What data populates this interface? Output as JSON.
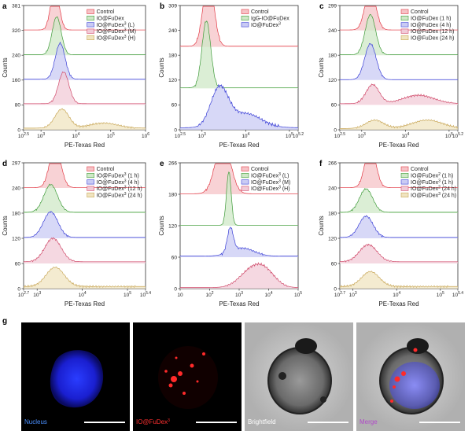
{
  "colors": {
    "red": "#e23b46",
    "red_fill": "#f6c3c7",
    "green": "#3f9b3a",
    "green_fill": "#cfe8c7",
    "blue": "#3a3fd6",
    "blue_fill": "#c9cbf4",
    "pink": "#d04a6a",
    "pink_fill": "#f1cbd7",
    "tan": "#c9a85a",
    "tan_fill": "#f0e4c0"
  },
  "chart_data": [
    {
      "panel": "a",
      "type": "area",
      "xlabel": "PE-Texas Red",
      "ylabel": "Counts",
      "xscale": "log",
      "xlim": [
        2.5,
        6
      ],
      "xticks": [
        {
          "v": 2.5,
          "base": "10",
          "exp": "2.5"
        },
        {
          "v": 3,
          "base": "10",
          "exp": "3"
        },
        {
          "v": 4,
          "base": "10",
          "exp": "4"
        },
        {
          "v": 5,
          "base": "10",
          "exp": "5"
        },
        {
          "v": 6,
          "base": "10",
          "exp": "6"
        }
      ],
      "yticks": [
        "0",
        "80",
        "160",
        "240",
        "320",
        "381"
      ],
      "legend": [
        {
          "text": "Control",
          "sup": "",
          "tail": ""
        },
        {
          "text": "IO@FuDex",
          "sup": "",
          "tail": ""
        },
        {
          "text": "IO@FuDex",
          "sup": "3",
          "tail": " (L)"
        },
        {
          "text": "IO@FuDex",
          "sup": "3",
          "tail": " (M)"
        },
        {
          "text": "IO@FuDex",
          "sup": "3",
          "tail": " (H)"
        }
      ],
      "series": [
        {
          "color": "red",
          "peaks": [
            [
              3.4,
              1.0,
              0.12
            ]
          ],
          "tail": 0.01
        },
        {
          "color": "green",
          "peaks": [
            [
              3.45,
              0.9,
              0.13
            ]
          ],
          "tail": 0.01
        },
        {
          "color": "blue",
          "peaks": [
            [
              3.55,
              0.85,
              0.14
            ]
          ],
          "tail": 0.02
        },
        {
          "color": "pink",
          "peaks": [
            [
              3.65,
              0.75,
              0.15
            ]
          ],
          "tail": 0.03
        },
        {
          "color": "tan",
          "peaks": [
            [
              3.6,
              0.45,
              0.2
            ],
            [
              4.8,
              0.12,
              0.4
            ]
          ],
          "tail": 0.04
        }
      ]
    },
    {
      "panel": "b",
      "type": "area",
      "xlabel": "PE-Texas Red",
      "ylabel": "Counts",
      "xscale": "log",
      "xlim": [
        2.5,
        5.2
      ],
      "xticks": [
        {
          "v": 2.5,
          "base": "10",
          "exp": "2.5"
        },
        {
          "v": 3,
          "base": "10",
          "exp": "3"
        },
        {
          "v": 4,
          "base": "10",
          "exp": "4"
        },
        {
          "v": 5,
          "base": "10",
          "exp": "5"
        },
        {
          "v": 5.2,
          "base": "10",
          "exp": "5.2"
        }
      ],
      "yticks": [
        "0",
        "60",
        "120",
        "180",
        "240",
        "309"
      ],
      "legend": [
        {
          "text": "Control",
          "sup": "",
          "tail": ""
        },
        {
          "text": "IgG-IO@FuDex",
          "sup": "",
          "tail": ""
        },
        {
          "text": "IO@FuDex",
          "sup": "3",
          "tail": ""
        }
      ],
      "series": [
        {
          "color": "red",
          "peaks": [
            [
              3.15,
              1.0,
              0.12
            ]
          ],
          "tail": 0.01
        },
        {
          "color": "green",
          "peaks": [
            [
              3.1,
              0.95,
              0.1
            ]
          ],
          "tail": 0.01
        },
        {
          "color": "blue",
          "peaks": [
            [
              3.4,
              0.55,
              0.2
            ],
            [
              4.0,
              0.2,
              0.35
            ]
          ],
          "tail": 0.03
        }
      ]
    },
    {
      "panel": "c",
      "type": "area",
      "xlabel": "PE-Texas Red",
      "ylabel": "Counts",
      "xscale": "log",
      "xlim": [
        2.5,
        5.2
      ],
      "xticks": [
        {
          "v": 2.5,
          "base": "10",
          "exp": "2.5"
        },
        {
          "v": 3,
          "base": "10",
          "exp": "3"
        },
        {
          "v": 4,
          "base": "10",
          "exp": "4"
        },
        {
          "v": 5,
          "base": "10",
          "exp": "5"
        },
        {
          "v": 5.2,
          "base": "10",
          "exp": "5.2"
        }
      ],
      "yticks": [
        "0",
        "60",
        "120",
        "180",
        "240",
        "299"
      ],
      "legend": [
        {
          "text": "Control",
          "sup": "",
          "tail": ""
        },
        {
          "text": "IO@FuDex (1 h)",
          "sup": "",
          "tail": ""
        },
        {
          "text": "IO@FuDex (4 h)",
          "sup": "",
          "tail": ""
        },
        {
          "text": "IO@FuDex (12 h)",
          "sup": "",
          "tail": ""
        },
        {
          "text": "IO@FuDex (24 h)",
          "sup": "",
          "tail": ""
        }
      ],
      "series": [
        {
          "color": "red",
          "peaks": [
            [
              3.2,
              1.0,
              0.12
            ]
          ],
          "tail": 0.01
        },
        {
          "color": "green",
          "peaks": [
            [
              3.2,
              0.95,
              0.12
            ]
          ],
          "tail": 0.01
        },
        {
          "color": "blue",
          "peaks": [
            [
              3.2,
              0.85,
              0.13
            ]
          ],
          "tail": 0.01
        },
        {
          "color": "pink",
          "peaks": [
            [
              3.25,
              0.45,
              0.15
            ],
            [
              4.3,
              0.2,
              0.35
            ]
          ],
          "tail": 0.03
        },
        {
          "color": "tan",
          "peaks": [
            [
              3.3,
              0.2,
              0.2
            ],
            [
              4.5,
              0.2,
              0.35
            ]
          ],
          "tail": 0.03
        }
      ]
    },
    {
      "panel": "d",
      "type": "area",
      "xlabel": "PE-Texas Red",
      "ylabel": "Counts",
      "xscale": "log",
      "xlim": [
        2.7,
        5.4
      ],
      "xticks": [
        {
          "v": 2.7,
          "base": "10",
          "exp": "2.7"
        },
        {
          "v": 3,
          "base": "10",
          "exp": "3"
        },
        {
          "v": 4,
          "base": "10",
          "exp": "4"
        },
        {
          "v": 5,
          "base": "10",
          "exp": "5"
        },
        {
          "v": 5.4,
          "base": "10",
          "exp": "5.4"
        }
      ],
      "yticks": [
        "0",
        "60",
        "120",
        "180",
        "240",
        "297"
      ],
      "legend": [
        {
          "text": "Control",
          "sup": "",
          "tail": ""
        },
        {
          "text": "IO@FuDex",
          "sup": "3",
          "tail": " (1 h)"
        },
        {
          "text": "IO@FuDex",
          "sup": "3",
          "tail": " (4 h)"
        },
        {
          "text": "IO@FuDex",
          "sup": "3",
          "tail": " (12 h)"
        },
        {
          "text": "IO@FuDex",
          "sup": "3",
          "tail": " (24 h)"
        }
      ],
      "series": [
        {
          "color": "red",
          "peaks": [
            [
              3.4,
              1.0,
              0.12
            ]
          ],
          "tail": 0.01
        },
        {
          "color": "green",
          "peaks": [
            [
              3.3,
              0.65,
              0.15
            ]
          ],
          "tail": 0.02
        },
        {
          "color": "blue",
          "peaks": [
            [
              3.3,
              0.6,
              0.16
            ]
          ],
          "tail": 0.02
        },
        {
          "color": "pink",
          "peaks": [
            [
              3.35,
              0.55,
              0.18
            ]
          ],
          "tail": 0.04
        },
        {
          "color": "tan",
          "peaks": [
            [
              3.4,
              0.45,
              0.2
            ]
          ],
          "tail": 0.05
        }
      ]
    },
    {
      "panel": "e",
      "type": "area",
      "xlabel": "PE-Texas Red",
      "ylabel": "Counts",
      "xscale": "log",
      "xlim": [
        1,
        5
      ],
      "xticks": [
        {
          "v": 1,
          "base": "10",
          "exp": ""
        },
        {
          "v": 2,
          "base": "10",
          "exp": "2"
        },
        {
          "v": 3,
          "base": "10",
          "exp": "3"
        },
        {
          "v": 4,
          "base": "10",
          "exp": "4"
        },
        {
          "v": 5,
          "base": "10",
          "exp": "5"
        }
      ],
      "yticks": [
        "0",
        "60",
        "120",
        "180",
        "266"
      ],
      "legend": [
        {
          "text": "Control",
          "sup": "",
          "tail": ""
        },
        {
          "text": "IO@FuDex",
          "sup": "3",
          "tail": " (L)"
        },
        {
          "text": "IO@FuDex",
          "sup": "3",
          "tail": " (M)"
        },
        {
          "text": "IO@FuDex",
          "sup": "3",
          "tail": " (H)"
        }
      ],
      "series": [
        {
          "color": "red",
          "peaks": [
            [
              2.45,
              1.0,
              0.25
            ]
          ],
          "tail": 0.01
        },
        {
          "color": "green",
          "peaks": [
            [
              2.65,
              1.0,
              0.08
            ]
          ],
          "tail": 0.01
        },
        {
          "color": "blue",
          "peaks": [
            [
              2.7,
              0.45,
              0.1
            ],
            [
              3.1,
              0.15,
              0.4
            ]
          ],
          "tail": 0.02
        },
        {
          "color": "pink",
          "peaks": [
            [
              3.4,
              0.3,
              0.4
            ],
            [
              3.9,
              0.25,
              0.35
            ]
          ],
          "tail": 0.02
        }
      ]
    },
    {
      "panel": "f",
      "type": "area",
      "xlabel": "PE-Texas Red",
      "ylabel": "Counts",
      "xscale": "log",
      "xlim": [
        2.7,
        5.4
      ],
      "xticks": [
        {
          "v": 2.7,
          "base": "10",
          "exp": "2.7"
        },
        {
          "v": 3,
          "base": "10",
          "exp": "3"
        },
        {
          "v": 4,
          "base": "10",
          "exp": "4"
        },
        {
          "v": 5,
          "base": "10",
          "exp": "5"
        },
        {
          "v": 5.4,
          "base": "10",
          "exp": "5.4"
        }
      ],
      "yticks": [
        "0",
        "60",
        "120",
        "180",
        "240",
        "266"
      ],
      "legend": [
        {
          "text": "Control",
          "sup": "",
          "tail": ""
        },
        {
          "text": "IO@FuDex",
          "sup": "2",
          "tail": " (1 h)"
        },
        {
          "text": "IO@FuDex",
          "sup": "3",
          "tail": " (1 h)"
        },
        {
          "text": "IO@FuDex",
          "sup": "2",
          "tail": " (24 h)"
        },
        {
          "text": "IO@FuDex",
          "sup": "3",
          "tail": " (24 h)"
        }
      ],
      "series": [
        {
          "color": "red",
          "peaks": [
            [
              3.4,
              1.0,
              0.12
            ]
          ],
          "tail": 0.01
        },
        {
          "color": "green",
          "peaks": [
            [
              3.3,
              0.55,
              0.15
            ]
          ],
          "tail": 0.02
        },
        {
          "color": "blue",
          "peaks": [
            [
              3.3,
              0.5,
              0.16
            ]
          ],
          "tail": 0.02
        },
        {
          "color": "pink",
          "peaks": [
            [
              3.35,
              0.4,
              0.2
            ]
          ],
          "tail": 0.04
        },
        {
          "color": "tan",
          "peaks": [
            [
              3.4,
              0.35,
              0.2
            ]
          ],
          "tail": 0.05
        }
      ]
    }
  ],
  "microscopy": {
    "panel": "g",
    "captions": [
      {
        "text": "Nucleus",
        "sup": "",
        "color": "#4a8fff"
      },
      {
        "text": "IO@FuDex",
        "sup": "3",
        "color": "#ff3030"
      },
      {
        "text": "Brightfield",
        "sup": "",
        "color": "#ffffff"
      },
      {
        "text": "Merge",
        "sup": "",
        "color": "#b04ac8"
      }
    ]
  }
}
